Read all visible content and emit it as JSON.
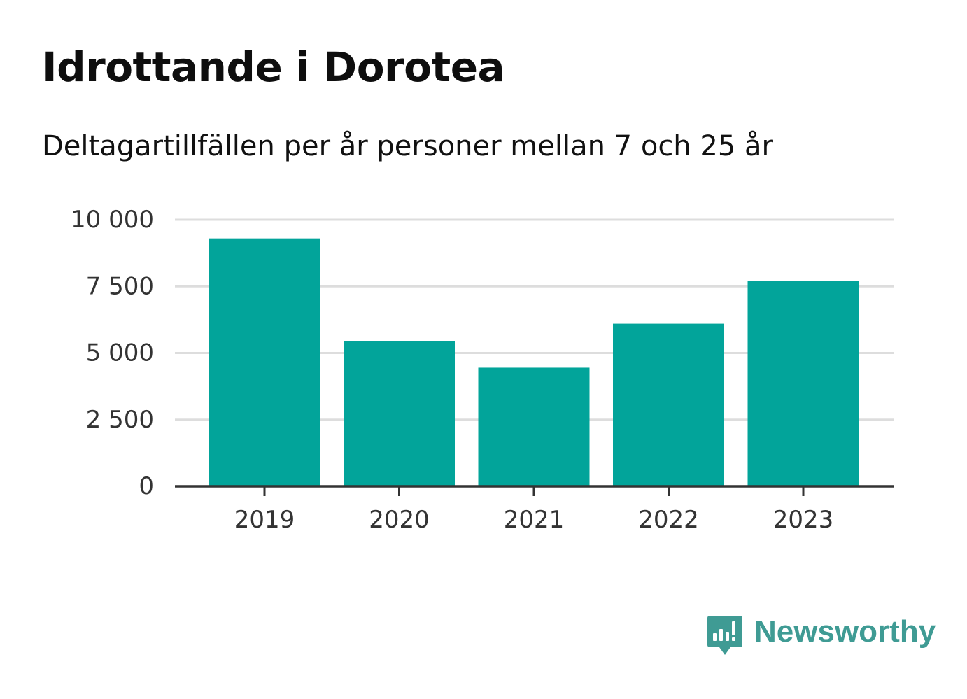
{
  "header": {
    "title": "Idrottande i Dorotea",
    "subtitle": "Deltagartillfällen per år personer mellan 7 och 25 år"
  },
  "chart_data": {
    "type": "bar",
    "categories": [
      "2019",
      "2020",
      "2021",
      "2022",
      "2023"
    ],
    "values": [
      9300,
      5450,
      4450,
      6100,
      7700
    ],
    "title": "Idrottande i Dorotea",
    "subtitle": "Deltagartillfällen per år personer mellan 7 och 25 år",
    "xlabel": "",
    "ylabel": "",
    "ylim": [
      0,
      10000
    ],
    "yticks": [
      0,
      2500,
      5000,
      7500,
      10000
    ],
    "ytick_labels": [
      "0",
      "2 500",
      "5 000",
      "7 500",
      "10 000"
    ],
    "grid": true,
    "bar_color": "#02a49a",
    "grid_color": "#dddddd",
    "axis_color": "#333333"
  },
  "brand": {
    "name": "Newsworthy",
    "icon": "newsworthy-logo-icon",
    "color": "#3f9b94"
  }
}
